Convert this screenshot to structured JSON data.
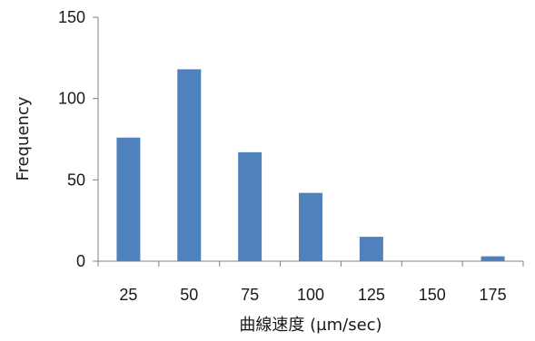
{
  "chart_data": {
    "type": "bar",
    "categories": [
      "25",
      "50",
      "75",
      "100",
      "125",
      "150",
      "175"
    ],
    "values": [
      76,
      118,
      67,
      42,
      15,
      0,
      3
    ],
    "xlabel": "曲線速度 (µm/sec)",
    "ylabel": "Frequency",
    "ylim": [
      0,
      150
    ],
    "yticks": [
      "0",
      "50",
      "100",
      "150"
    ],
    "grid": false,
    "colors": {
      "bar": "#4f81bd",
      "axis": "#808080"
    }
  }
}
